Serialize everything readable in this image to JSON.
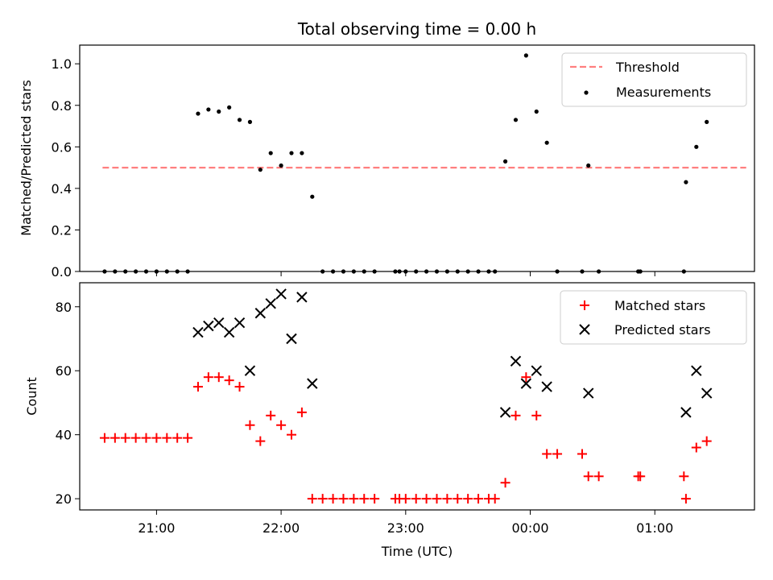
{
  "chart_data": [
    {
      "panel": "top",
      "type": "scatter",
      "title": "Total observing time = 0.00 h",
      "ylabel": "Matched/Predicted stars",
      "ylim": [
        0,
        1.09
      ],
      "yticks": [
        "0.0",
        "0.2",
        "0.4",
        "0.6",
        "0.8",
        "1.0"
      ],
      "xlim": [
        "20:23",
        "01:48"
      ],
      "legend": "top-right",
      "colors": {
        "measurements": "#000000",
        "threshold": "#ff7f7f"
      },
      "threshold": {
        "label": "Threshold",
        "value": 0.5,
        "x": [
          "20:34",
          "01:44"
        ]
      },
      "series": [
        {
          "name": "Measurements",
          "points": [
            [
              "20:35",
              0.0
            ],
            [
              "20:40",
              0.0
            ],
            [
              "20:45",
              0.0
            ],
            [
              "20:50",
              0.0
            ],
            [
              "20:55",
              0.0
            ],
            [
              "21:00",
              0.0
            ],
            [
              "21:05",
              0.0
            ],
            [
              "21:10",
              0.0
            ],
            [
              "21:15",
              0.0
            ],
            [
              "21:20",
              0.76
            ],
            [
              "21:25",
              0.78
            ],
            [
              "21:30",
              0.77
            ],
            [
              "21:35",
              0.79
            ],
            [
              "21:40",
              0.73
            ],
            [
              "21:45",
              0.72
            ],
            [
              "21:50",
              0.49
            ],
            [
              "21:55",
              0.57
            ],
            [
              "22:00",
              0.51
            ],
            [
              "22:05",
              0.57
            ],
            [
              "22:10",
              0.57
            ],
            [
              "22:15",
              0.36
            ],
            [
              "22:20",
              0.0
            ],
            [
              "22:25",
              0.0
            ],
            [
              "22:30",
              0.0
            ],
            [
              "22:35",
              0.0
            ],
            [
              "22:40",
              0.0
            ],
            [
              "22:45",
              0.0
            ],
            [
              "22:55",
              0.0
            ],
            [
              "22:57",
              0.0
            ],
            [
              "23:00",
              0.0
            ],
            [
              "23:05",
              0.0
            ],
            [
              "23:10",
              0.0
            ],
            [
              "23:15",
              0.0
            ],
            [
              "23:20",
              0.0
            ],
            [
              "23:25",
              0.0
            ],
            [
              "23:30",
              0.0
            ],
            [
              "23:35",
              0.0
            ],
            [
              "23:40",
              0.0
            ],
            [
              "23:43",
              0.0
            ],
            [
              "23:48",
              0.53
            ],
            [
              "23:53",
              0.73
            ],
            [
              "23:58",
              1.04
            ],
            [
              "00:03",
              0.77
            ],
            [
              "00:08",
              0.62
            ],
            [
              "00:13",
              0.0
            ],
            [
              "00:25",
              0.0
            ],
            [
              "00:28",
              0.51
            ],
            [
              "00:33",
              0.0
            ],
            [
              "00:52",
              0.0
            ],
            [
              "00:53",
              0.0
            ],
            [
              "01:14",
              0.0
            ],
            [
              "01:15",
              0.43
            ],
            [
              "01:20",
              0.6
            ],
            [
              "01:25",
              0.72
            ]
          ]
        }
      ]
    },
    {
      "panel": "bottom",
      "type": "scatter",
      "xlabel": "Time (UTC)",
      "ylabel": "Count",
      "ylim": [
        16.5,
        87.5
      ],
      "yticks": [
        "20",
        "40",
        "60",
        "80"
      ],
      "xlim": [
        "20:23",
        "01:48"
      ],
      "xticks": [
        "21:00",
        "22:00",
        "23:00",
        "00:00",
        "01:00"
      ],
      "legend": "top-right",
      "colors": {
        "matched": "#ff0000",
        "predicted": "#000000"
      },
      "series": [
        {
          "name": "Matched stars",
          "marker": "+",
          "points": [
            [
              "20:35",
              39
            ],
            [
              "20:40",
              39
            ],
            [
              "20:45",
              39
            ],
            [
              "20:50",
              39
            ],
            [
              "20:55",
              39
            ],
            [
              "21:00",
              39
            ],
            [
              "21:05",
              39
            ],
            [
              "21:10",
              39
            ],
            [
              "21:15",
              39
            ],
            [
              "21:20",
              55
            ],
            [
              "21:25",
              58
            ],
            [
              "21:30",
              58
            ],
            [
              "21:35",
              57
            ],
            [
              "21:40",
              55
            ],
            [
              "21:45",
              43
            ],
            [
              "21:50",
              38
            ],
            [
              "21:55",
              46
            ],
            [
              "22:00",
              43
            ],
            [
              "22:05",
              40
            ],
            [
              "22:10",
              47
            ],
            [
              "22:15",
              20
            ],
            [
              "22:20",
              20
            ],
            [
              "22:25",
              20
            ],
            [
              "22:30",
              20
            ],
            [
              "22:35",
              20
            ],
            [
              "22:40",
              20
            ],
            [
              "22:45",
              20
            ],
            [
              "22:55",
              20
            ],
            [
              "22:57",
              20
            ],
            [
              "23:00",
              20
            ],
            [
              "23:05",
              20
            ],
            [
              "23:10",
              20
            ],
            [
              "23:15",
              20
            ],
            [
              "23:20",
              20
            ],
            [
              "23:25",
              20
            ],
            [
              "23:30",
              20
            ],
            [
              "23:35",
              20
            ],
            [
              "23:40",
              20
            ],
            [
              "23:43",
              20
            ],
            [
              "23:48",
              25
            ],
            [
              "23:53",
              46
            ],
            [
              "23:58",
              58
            ],
            [
              "00:03",
              46
            ],
            [
              "00:08",
              34
            ],
            [
              "00:13",
              34
            ],
            [
              "00:25",
              34
            ],
            [
              "00:28",
              27
            ],
            [
              "00:33",
              27
            ],
            [
              "00:52",
              27
            ],
            [
              "00:53",
              27
            ],
            [
              "01:14",
              27
            ],
            [
              "01:15",
              20
            ],
            [
              "01:20",
              36
            ],
            [
              "01:25",
              38
            ]
          ]
        },
        {
          "name": "Predicted stars",
          "marker": "x",
          "points": [
            [
              "21:20",
              72
            ],
            [
              "21:25",
              74
            ],
            [
              "21:30",
              75
            ],
            [
              "21:35",
              72
            ],
            [
              "21:40",
              75
            ],
            [
              "21:45",
              60
            ],
            [
              "21:50",
              78
            ],
            [
              "21:55",
              81
            ],
            [
              "22:00",
              84
            ],
            [
              "22:05",
              70
            ],
            [
              "22:10",
              83
            ],
            [
              "22:15",
              56
            ],
            [
              "23:48",
              47
            ],
            [
              "23:53",
              63
            ],
            [
              "23:58",
              56
            ],
            [
              "00:03",
              60
            ],
            [
              "00:08",
              55
            ],
            [
              "00:28",
              53
            ],
            [
              "01:15",
              47
            ],
            [
              "01:20",
              60
            ],
            [
              "01:25",
              53
            ]
          ]
        }
      ]
    }
  ]
}
